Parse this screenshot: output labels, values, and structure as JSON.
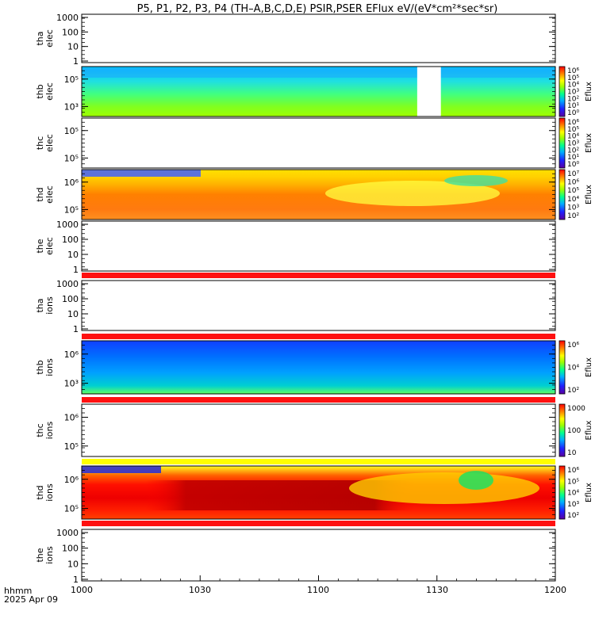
{
  "title": "P5, P1, P2, P3, P4 (TH–A,B,C,D,E) PSIR,PSER EFlux eV/(eV*cm²*sec*sr)",
  "time_axis": {
    "units_label": "hhmm",
    "date_label": "2025 Apr 09",
    "ticks": [
      "1000",
      "1030",
      "1100",
      "1130",
      "1200"
    ]
  },
  "colorbar_label": "Eflux",
  "colors": {
    "red_band": "#ff1010",
    "yellow_band": "#ffff00"
  },
  "chart_data": {
    "type": "heatmap",
    "x_range": [
      "10:00",
      "12:00"
    ],
    "x_ticks": [
      "1000",
      "1030",
      "1100",
      "1130",
      "1200"
    ],
    "panels": [
      {
        "probe": "tha",
        "species": "elec",
        "ylabel": [
          "tha",
          "elec"
        ],
        "has_data": false,
        "yticks": [
          "1000",
          "100",
          "10",
          "1"
        ]
      },
      {
        "probe": "thb",
        "species": "elec",
        "ylabel": [
          "thb",
          "elec"
        ],
        "has_data": true,
        "yticks": [
          "10⁵",
          "10³"
        ],
        "colorbar": {
          "ticks": [
            "10⁶",
            "10⁵",
            "10⁴",
            "10³",
            "10²",
            "10¹",
            "10⁰"
          ]
        },
        "data_gap": [
          "11:25",
          "11:31"
        ]
      },
      {
        "probe": "thc",
        "species": "elec",
        "ylabel": [
          "thc",
          "elec"
        ],
        "has_data": false,
        "yticks": [
          "10⁵",
          "10⁵"
        ],
        "colorbar": {
          "ticks": [
            "10⁶",
            "10⁵",
            "10⁴",
            "10³",
            "10²",
            "10¹",
            "10⁰"
          ]
        }
      },
      {
        "probe": "thd",
        "species": "elec",
        "ylabel": [
          "thd",
          "elec"
        ],
        "has_data": true,
        "yticks": [
          "10⁶",
          "10⁵"
        ],
        "colorbar": {
          "ticks": [
            "10⁷",
            "10⁶",
            "10⁵",
            "10⁴",
            "10³",
            "10²"
          ]
        }
      },
      {
        "probe": "the",
        "species": "elec",
        "ylabel": [
          "the",
          "elec"
        ],
        "has_data": false,
        "yticks": [
          "1000",
          "100",
          "10",
          "1"
        ],
        "bottom_band": "red"
      },
      {
        "probe": "tha",
        "species": "ions",
        "ylabel": [
          "tha",
          "ions"
        ],
        "has_data": false,
        "yticks": [
          "1000",
          "100",
          "10",
          "1"
        ],
        "bottom_band": "red"
      },
      {
        "probe": "thb",
        "species": "ions",
        "ylabel": [
          "thb",
          "ions"
        ],
        "has_data": true,
        "yticks": [
          "10⁶",
          "10³"
        ],
        "colorbar": {
          "ticks": [
            "10⁶",
            "10⁴",
            "10²"
          ]
        },
        "bottom_band": "red"
      },
      {
        "probe": "thc",
        "species": "ions",
        "ylabel": [
          "thc",
          "ions"
        ],
        "has_data": false,
        "yticks": [
          "10⁶",
          "10⁵"
        ],
        "colorbar": {
          "ticks": [
            "1000",
            "100",
            "10"
          ]
        }
      },
      {
        "probe": "thd",
        "species": "ions",
        "ylabel": [
          "thd",
          "ions"
        ],
        "has_data": true,
        "yticks": [
          "10⁶",
          "10⁵"
        ],
        "colorbar": {
          "ticks": [
            "10⁶",
            "10⁵",
            "10⁴",
            "10³",
            "10²"
          ]
        },
        "top_band": "yellow",
        "bottom_band": "red"
      },
      {
        "probe": "the",
        "species": "ions",
        "ylabel": [
          "the",
          "ions"
        ],
        "has_data": false,
        "yticks": [
          "1000",
          "100",
          "10",
          "1"
        ]
      }
    ]
  }
}
